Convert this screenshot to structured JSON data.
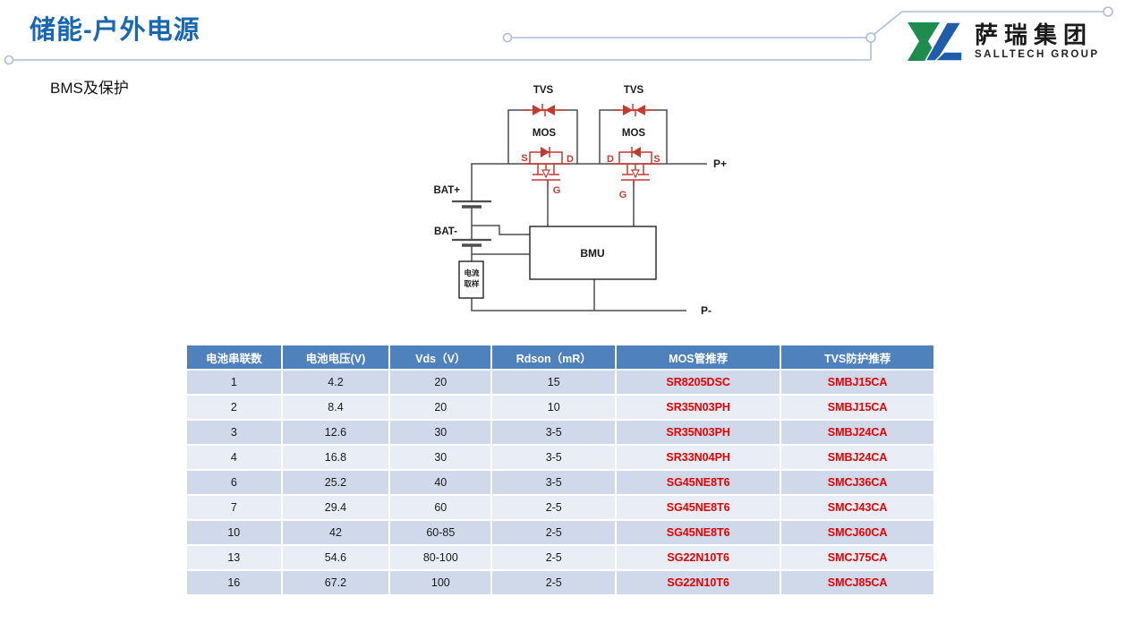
{
  "slide": {
    "title": "储能-户外电源",
    "subtitle": "BMS及保护"
  },
  "logo": {
    "name_cn": "萨瑞集团",
    "name_en": "SALLTECH GROUP",
    "green": "#1e8c4c",
    "blue": "#1f5ca9"
  },
  "circuit": {
    "tvs_label": "TVS",
    "mos_label": "MOS",
    "bat_plus": "BAT+",
    "bat_minus": "BAT-",
    "bmu": "BMU",
    "sampling_line1": "电流",
    "sampling_line2": "取样",
    "p_plus": "P+",
    "p_minus": "P-",
    "s_label": "S",
    "d_label": "D",
    "g_label": "G",
    "wire_color": "#4d4d4d",
    "component_color": "#c23a30"
  },
  "table": {
    "headers": [
      "电池串联数",
      "电池电压(V)",
      "Vds（V）",
      "Rdson（mR）",
      "MOS管推荐",
      "TVS防护推荐"
    ],
    "rows": [
      [
        "1",
        "4.2",
        "20",
        "15",
        "SR8205DSC",
        "SMBJ15CA"
      ],
      [
        "2",
        "8.4",
        "20",
        "10",
        "SR35N03PH",
        "SMBJ15CA"
      ],
      [
        "3",
        "12.6",
        "30",
        "3-5",
        "SR35N03PH",
        "SMBJ24CA"
      ],
      [
        "4",
        "16.8",
        "30",
        "3-5",
        "SR33N04PH",
        "SMBJ24CA"
      ],
      [
        "6",
        "25.2",
        "40",
        "3-5",
        "SG45NE8T6",
        "SMCJ36CA"
      ],
      [
        "7",
        "29.4",
        "60",
        "2-5",
        "SG45NE8T6",
        "SMCJ43CA"
      ],
      [
        "10",
        "42",
        "60-85",
        "2-5",
        "SG45NE8T6",
        "SMCJ60CA"
      ],
      [
        "13",
        "54.6",
        "80-100",
        "2-5",
        "SG22N10T6",
        "SMCJ75CA"
      ],
      [
        "16",
        "67.2",
        "100",
        "2-5",
        "SG22N10T6",
        "SMCJ85CA"
      ]
    ],
    "colors": {
      "header_bg": "#4f81bd",
      "row_odd": "#cfd9ea",
      "row_even": "#e9edf5",
      "part_text": "#e60000"
    }
  }
}
